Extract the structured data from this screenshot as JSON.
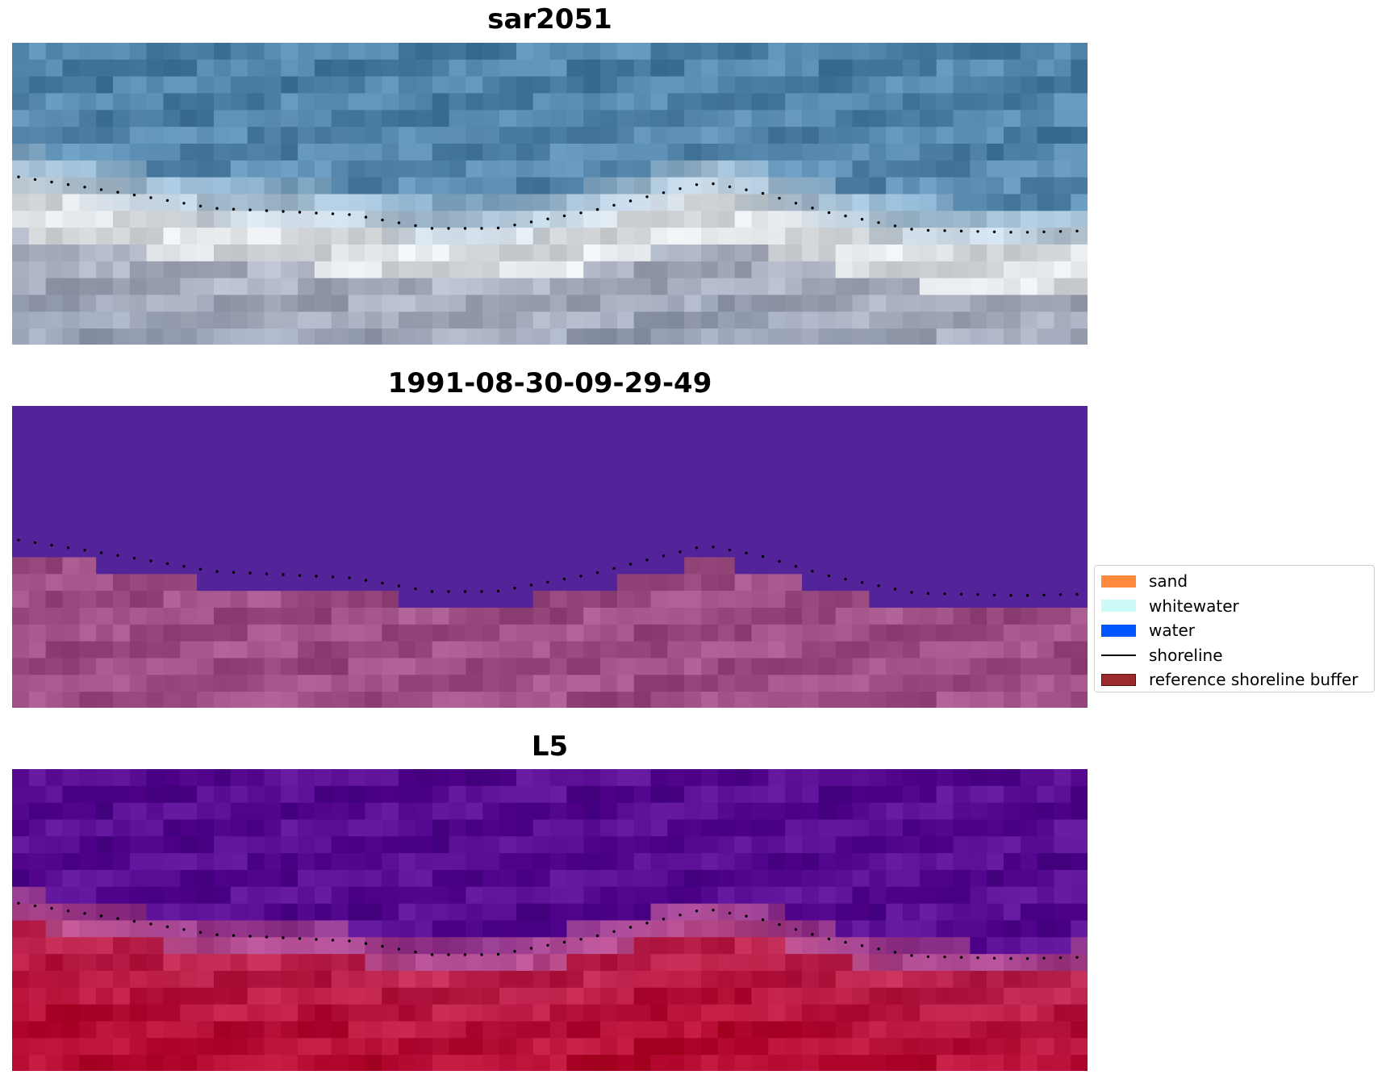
{
  "panels": [
    {
      "title": "sar2051",
      "style": "rgb"
    },
    {
      "title": "1991-08-30-09-29-49",
      "style": "classified"
    },
    {
      "title": "L5",
      "style": "falsecolor"
    }
  ],
  "legend": {
    "items": [
      {
        "label": "sand",
        "kind": "patch",
        "color": "#ff8a3d"
      },
      {
        "label": "whitewater",
        "kind": "patch",
        "color": "#ccfbfa"
      },
      {
        "label": "water",
        "kind": "patch",
        "color": "#0055ff"
      },
      {
        "label": "shoreline",
        "kind": "line",
        "color": "#000000"
      },
      {
        "label": "reference shoreline buffer",
        "kind": "patch",
        "color": "#9c2a2a"
      }
    ]
  },
  "colors": {
    "shoreline_dots": "#000000",
    "classified_water": "#532399",
    "classified_land": "#a85a8e",
    "rgb_water": "#5c8fb5",
    "rgb_surf": "#e2e8ee",
    "rgb_land": "#b6bccb",
    "fc_water": "#5f139a",
    "fc_land": "#c42d57"
  }
}
